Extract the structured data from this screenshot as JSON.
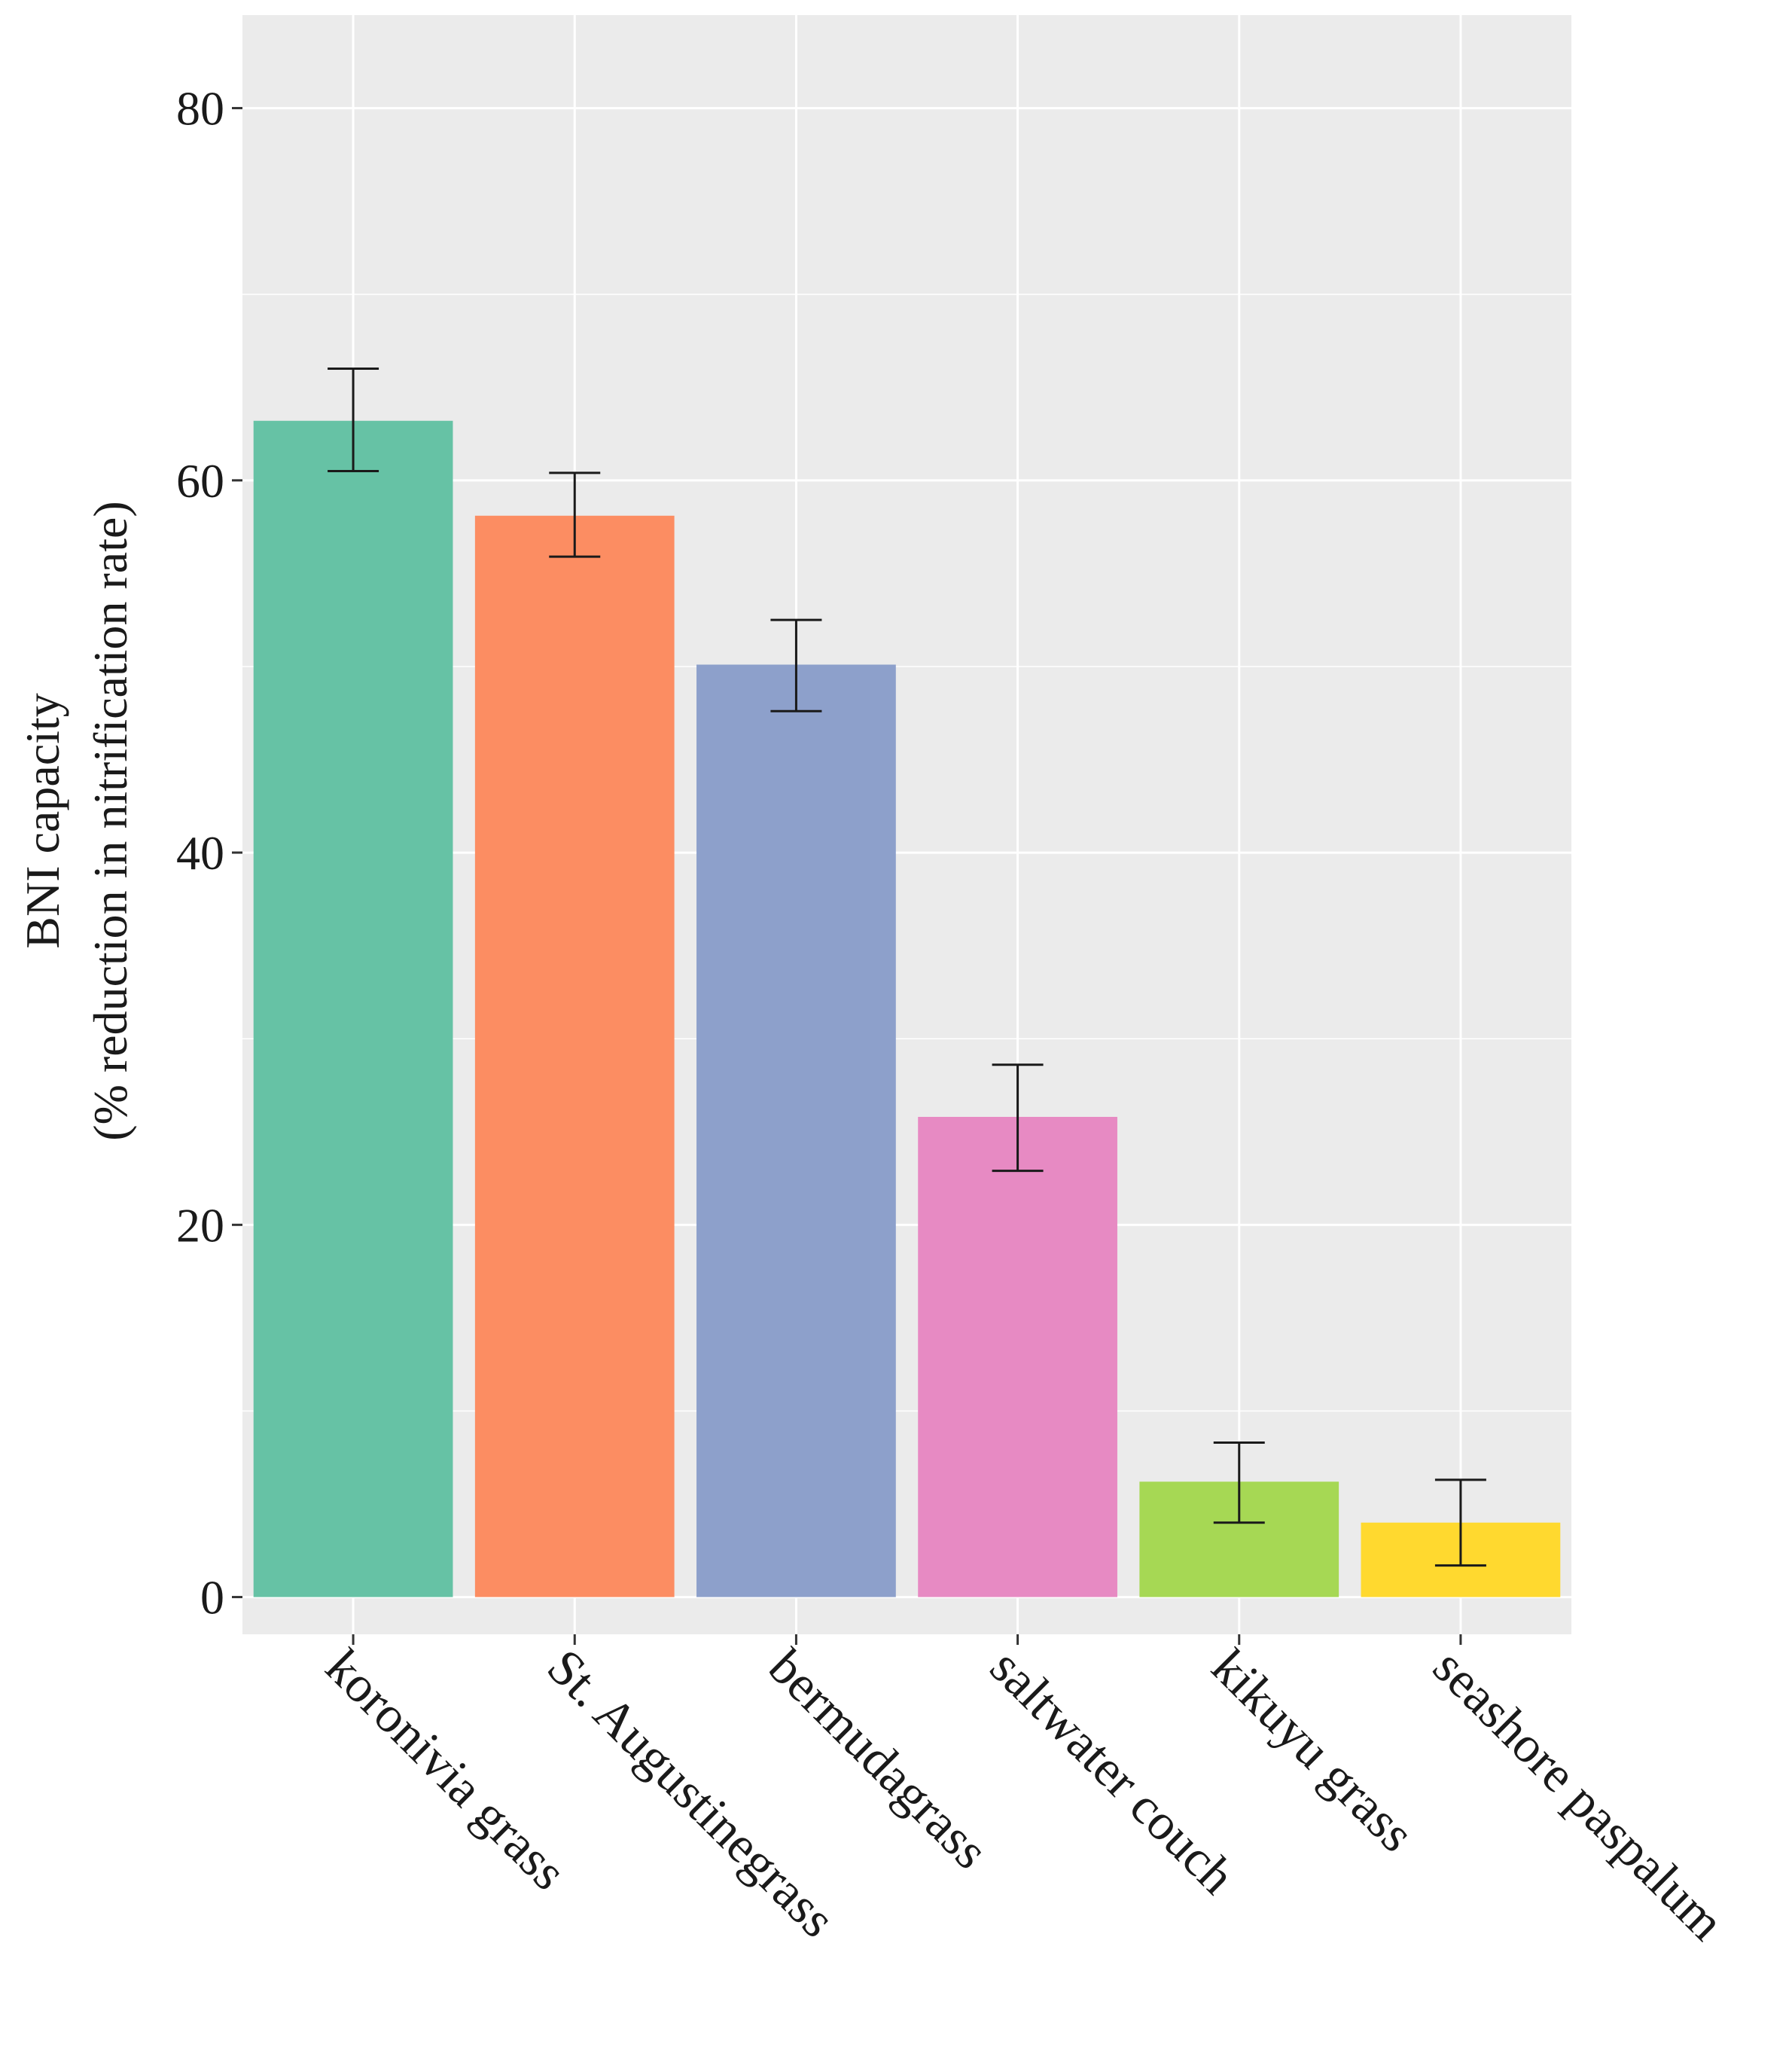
{
  "chart_data": {
    "type": "bar",
    "title": "",
    "xlabel": "",
    "ylabel_line1": "BNI capacity",
    "ylabel_line2": "(% reduction in nitrification rate)",
    "ylim": [
      -2,
      85
    ],
    "yticks": [
      0,
      20,
      40,
      60,
      80
    ],
    "ytick_labels": [
      "0",
      "20",
      "40",
      "60",
      "80"
    ],
    "grid": true,
    "legend": "none",
    "categories": [
      "koronivia grass",
      "St. Augustinegrass",
      "bermudagrass",
      "saltwater couch",
      "kikuyu grass",
      "seashore paspalum"
    ],
    "values": [
      63.2,
      58.1,
      50.1,
      25.8,
      6.2,
      4.0
    ],
    "error_low": [
      60.5,
      55.9,
      47.6,
      22.9,
      4.0,
      1.7
    ],
    "error_high": [
      66.0,
      60.4,
      52.5,
      28.6,
      8.3,
      6.3
    ],
    "colors": [
      "#66c2a5",
      "#fc8d62",
      "#8da0cb",
      "#e78ac3",
      "#a6d854",
      "#ffd92f"
    ]
  }
}
